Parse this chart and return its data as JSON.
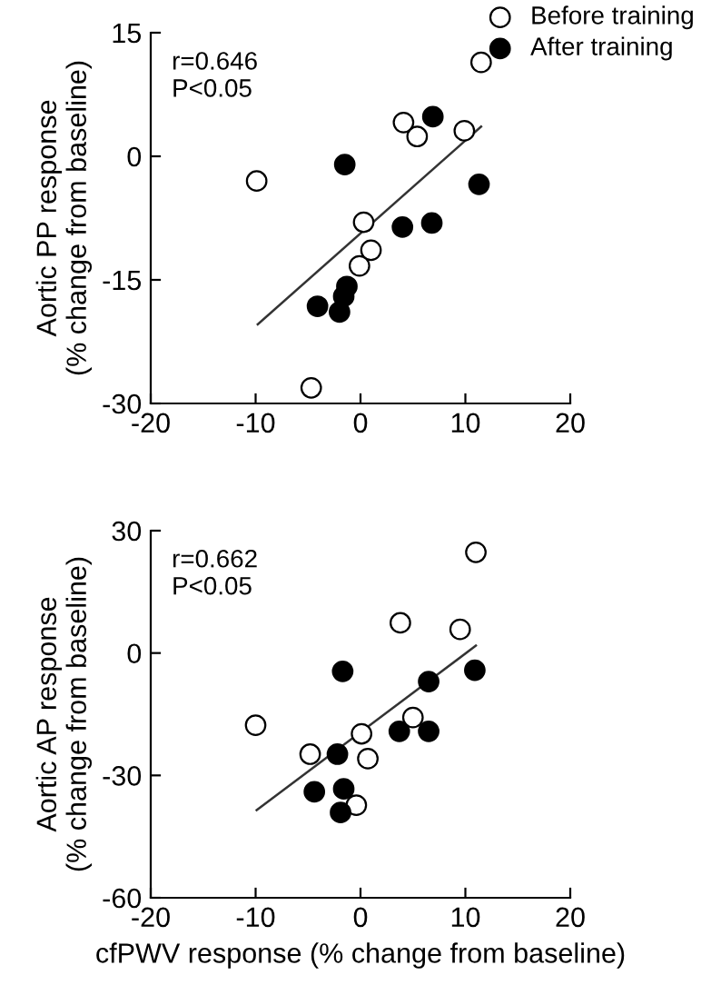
{
  "chart_data": [
    {
      "type": "scatter",
      "ylabel": "Aortic PP response\n(% change from baseline)",
      "xlim": [
        -20,
        20
      ],
      "xticks": [
        -20,
        -10,
        0,
        10,
        20
      ],
      "ylim": [
        -30,
        15
      ],
      "yticks": [
        -30,
        -15,
        0,
        15
      ],
      "legend": "top right",
      "marker": "none",
      "grid": false,
      "annotations": [
        "r=0.646\nP<0.05"
      ],
      "series": [
        {
          "name": "Before training",
          "marker": "circle",
          "color": "#ffffff",
          "x": [
            -9.9,
            11.5,
            4.1,
            5.4,
            9.9,
            0.3,
            1.0,
            -0.1,
            -4.7
          ],
          "values": [
            -3.0,
            11.4,
            4.1,
            2.4,
            3.1,
            -8.0,
            -11.4,
            -13.3,
            -28.1
          ]
        },
        {
          "name": "After training",
          "marker": "circle",
          "color": "#000000",
          "x": [
            -1.5,
            6.9,
            11.3,
            4.0,
            6.8,
            -4.1,
            -1.3,
            -1.6,
            -2.0
          ],
          "values": [
            -1.0,
            4.8,
            -3.4,
            -8.6,
            -8.1,
            -18.2,
            -15.8,
            -17.0,
            -18.9
          ]
        },
        {
          "type": "line",
          "color": "#333333",
          "x": [
            -9.8,
            11.5
          ],
          "values": [
            -20.4,
            3.6
          ]
        }
      ]
    },
    {
      "type": "scatter",
      "xlabel": "cfPWV response (% change from baseline)",
      "ylabel": "Aortic AP response\n(% change from baseline)",
      "xlim": [
        -20,
        20
      ],
      "xticks": [
        -20,
        -10,
        0,
        10,
        20
      ],
      "ylim": [
        -60,
        30
      ],
      "yticks": [
        -60,
        -30,
        0,
        30
      ],
      "marker": "none",
      "grid": false,
      "annotations": [
        "r=0.662\nP<0.05"
      ],
      "series": [
        {
          "marker": "circle",
          "color": "#ffffff",
          "x": [
            -10.0,
            11.0,
            3.8,
            9.5,
            5.0,
            0.1,
            -4.8,
            0.7,
            -0.4
          ],
          "values": [
            -17.7,
            24.7,
            7.4,
            5.8,
            -15.8,
            -19.8,
            -24.8,
            -25.9,
            -37.3
          ]
        },
        {
          "marker": "circle",
          "color": "#000000",
          "x": [
            -1.7,
            10.9,
            6.5,
            3.7,
            6.5,
            -2.2,
            -4.4,
            -1.6,
            -1.9
          ],
          "values": [
            -4.5,
            -4.2,
            -7.0,
            -19.2,
            -19.2,
            -24.8,
            -34.0,
            -33.3,
            -39.1
          ]
        },
        {
          "type": "line",
          "color": "#333333",
          "x": [
            -9.9,
            11.0
          ],
          "values": [
            -38.5,
            1.8
          ]
        }
      ]
    }
  ]
}
